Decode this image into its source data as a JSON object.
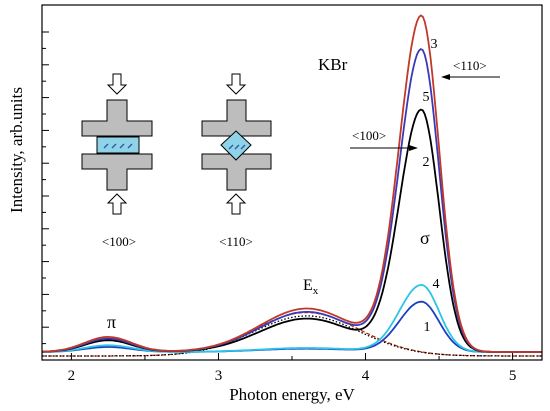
{
  "chart_data": {
    "type": "line",
    "xlabel": "Photon energy, eV",
    "ylabel": "Intensity, arb.units",
    "xlim": [
      1.8,
      5.2
    ],
    "ylim": [
      0,
      1.05
    ],
    "x_ticks": [
      2,
      3,
      4,
      5
    ],
    "y_ticks": "unlabeled",
    "grid": false,
    "legend": "none (curves numbered directly on the plot)",
    "series": [
      {
        "name": "3",
        "color": "#c0392b",
        "peak_energy": 4.38,
        "peak_intensity": 1.0,
        "shoulder": 0.13,
        "pi_band": 0.045
      },
      {
        "name": "5",
        "color": "#3a3ab8",
        "peak_energy": 4.38,
        "peak_intensity": 0.9,
        "shoulder": 0.12,
        "pi_band": 0.04
      },
      {
        "name": "2",
        "color": "#000000",
        "peak_energy": 4.38,
        "peak_intensity": 0.72,
        "shoulder": 0.1,
        "pi_band": 0.035
      },
      {
        "name": "4",
        "color": "#2cc4e8",
        "peak_energy": 4.38,
        "peak_intensity": 0.2,
        "shoulder": 0.012,
        "pi_band": 0.02
      },
      {
        "name": "1",
        "color": "#1b3fc0",
        "peak_energy": 4.38,
        "peak_intensity": 0.15,
        "shoulder": 0.01,
        "pi_band": 0.015
      }
    ],
    "components": [
      {
        "kind": "dashed",
        "color": "#b03010",
        "center": 3.6,
        "width": 0.36,
        "amplitude": 0.13
      },
      {
        "kind": "dotted",
        "color": "#000000",
        "center": 3.6,
        "width": 0.36,
        "amplitude": 0.12
      }
    ],
    "annotations": {
      "sample": "KBr",
      "polarization": "σ",
      "exciton": "E",
      "exciton_sub": "x",
      "pi_band": "π",
      "direction_110": "<110>",
      "direction_100": "<100>",
      "schematic_left_label": "<100>",
      "schematic_right_label": "<110>"
    }
  }
}
